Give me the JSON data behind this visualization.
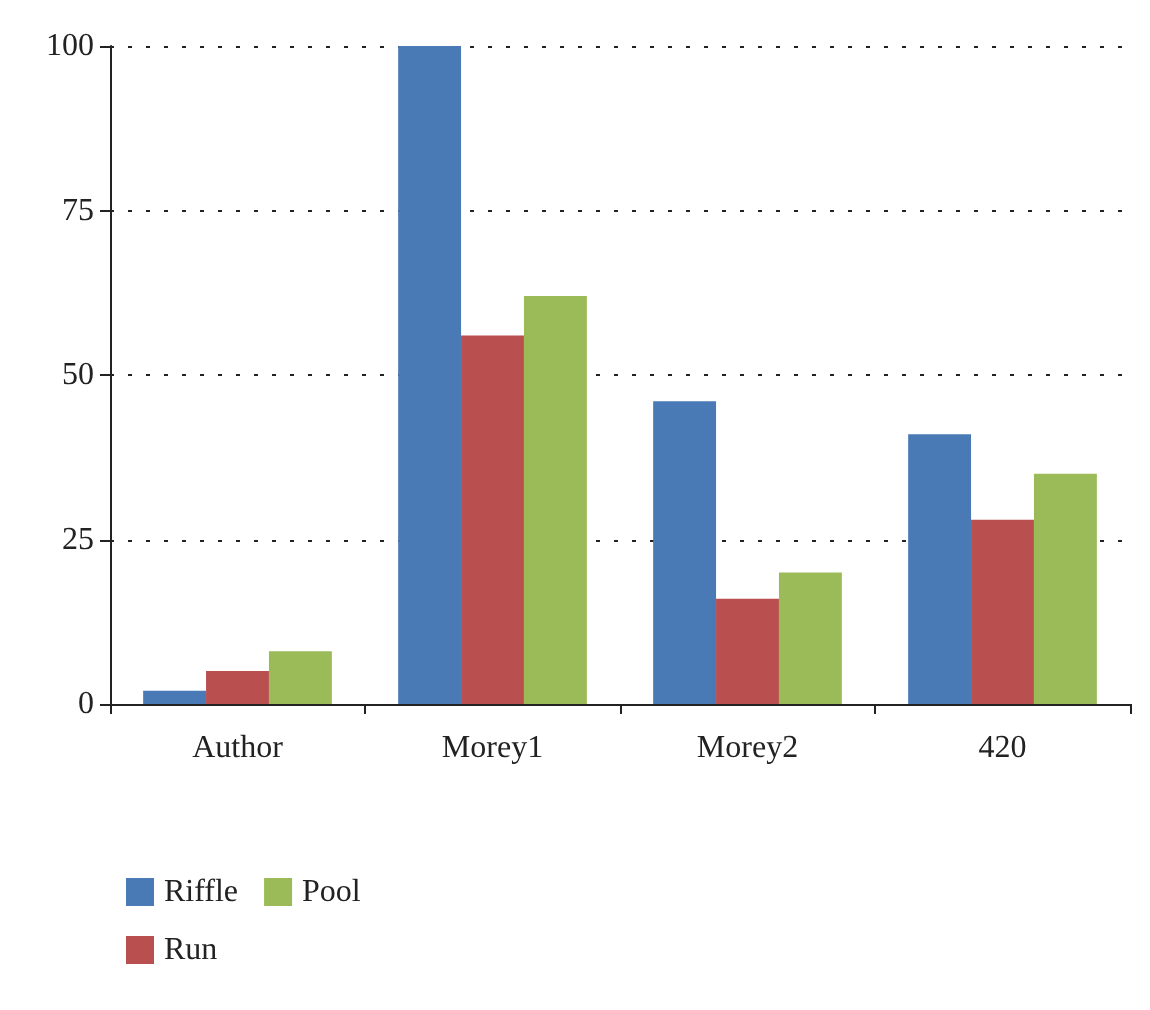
{
  "chart_data": {
    "type": "bar",
    "categories": [
      "Author",
      "Morey1",
      "Morey2",
      "420"
    ],
    "series": [
      {
        "name": "Riffle",
        "color": "#4a7ab5",
        "values": [
          2,
          100,
          46,
          41
        ]
      },
      {
        "name": "Run",
        "color": "#b94f4f",
        "values": [
          5,
          56,
          16,
          28
        ]
      },
      {
        "name": "Pool",
        "color": "#9bbb59",
        "values": [
          8,
          62,
          20,
          35
        ]
      }
    ],
    "ylim": [
      0,
      100
    ],
    "yticks": [
      0,
      25,
      50,
      75,
      100
    ],
    "grid": "y",
    "legend": "bottom left"
  }
}
